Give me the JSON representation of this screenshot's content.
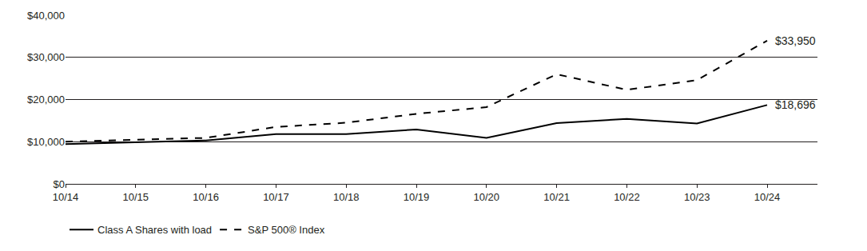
{
  "chart_data": {
    "type": "line",
    "categories": [
      "10/14",
      "10/15",
      "10/16",
      "10/17",
      "10/18",
      "10/19",
      "10/20",
      "10/21",
      "10/22",
      "10/23",
      "10/24"
    ],
    "series": [
      {
        "name": "Class A Shares with load",
        "color": "#000000",
        "line_style": "solid",
        "values": [
          9425,
          9800,
          10300,
          11800,
          11800,
          12900,
          10900,
          14400,
          15400,
          14300,
          18696
        ]
      },
      {
        "name": "S&P 500® Index",
        "color": "#000000",
        "line_style": "dash",
        "values": [
          10000,
          10500,
          10900,
          13500,
          14500,
          16600,
          18200,
          26000,
          22300,
          24600,
          33950
        ]
      }
    ],
    "annotations": [
      {
        "text": "$33,950",
        "x": "10/24",
        "y": 33950
      },
      {
        "text": "$18,696",
        "x": "10/24",
        "y": 18696
      }
    ],
    "ylim": [
      0,
      40000
    ],
    "yticks": [
      {
        "value": 0,
        "label": "$0"
      },
      {
        "value": 10000,
        "label": "$10,000"
      },
      {
        "value": 20000,
        "label": "$20,000"
      },
      {
        "value": 30000,
        "label": "$30,000"
      },
      {
        "value": 40000,
        "label": "$40,000"
      }
    ],
    "grid": true,
    "legend": "bottom left"
  }
}
